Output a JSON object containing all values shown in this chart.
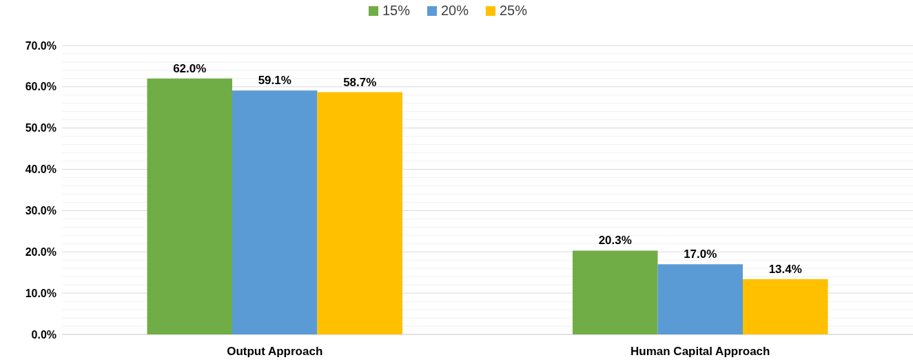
{
  "chart_data": {
    "type": "bar",
    "categories": [
      "Output Approach",
      "Human Capital Approach"
    ],
    "series": [
      {
        "name": "15%",
        "color": "#70ad47",
        "values": [
          62.0,
          20.3
        ],
        "value_labels": [
          "62.0%",
          "20.3%"
        ]
      },
      {
        "name": "20%",
        "color": "#5b9bd5",
        "values": [
          59.1,
          17.0
        ],
        "value_labels": [
          "59.1%",
          "17.0%"
        ]
      },
      {
        "name": "25%",
        "color": "#ffc000",
        "values": [
          58.7,
          13.4
        ],
        "value_labels": [
          "58.7%",
          "13.4%"
        ]
      }
    ],
    "ylim": [
      0,
      70
    ],
    "yticks": [
      {
        "value": 0,
        "label": "0.0%"
      },
      {
        "value": 2,
        "label": null
      },
      {
        "value": 4,
        "label": null
      },
      {
        "value": 6,
        "label": null
      },
      {
        "value": 8,
        "label": null
      },
      {
        "value": 10,
        "label": "10.0%"
      },
      {
        "value": 12,
        "label": null
      },
      {
        "value": 14,
        "label": null
      },
      {
        "value": 16,
        "label": null
      },
      {
        "value": 18,
        "label": null
      },
      {
        "value": 20,
        "label": "20.0%"
      },
      {
        "value": 22,
        "label": null
      },
      {
        "value": 24,
        "label": null
      },
      {
        "value": 26,
        "label": null
      },
      {
        "value": 28,
        "label": null
      },
      {
        "value": 30,
        "label": "30.0%"
      },
      {
        "value": 32,
        "label": null
      },
      {
        "value": 34,
        "label": null
      },
      {
        "value": 36,
        "label": null
      },
      {
        "value": 38,
        "label": null
      },
      {
        "value": 40,
        "label": "40.0%"
      },
      {
        "value": 42,
        "label": null
      },
      {
        "value": 44,
        "label": null
      },
      {
        "value": 46,
        "label": null
      },
      {
        "value": 48,
        "label": null
      },
      {
        "value": 50,
        "label": "50.0%"
      },
      {
        "value": 52,
        "label": null
      },
      {
        "value": 54,
        "label": null
      },
      {
        "value": 56,
        "label": null
      },
      {
        "value": 58,
        "label": null
      },
      {
        "value": 60,
        "label": "60.0%"
      },
      {
        "value": 62,
        "label": null
      },
      {
        "value": 64,
        "label": null
      },
      {
        "value": 66,
        "label": null
      },
      {
        "value": 68,
        "label": null
      },
      {
        "value": 70,
        "label": "70.0%"
      }
    ],
    "grid": "y",
    "legend": "top"
  }
}
